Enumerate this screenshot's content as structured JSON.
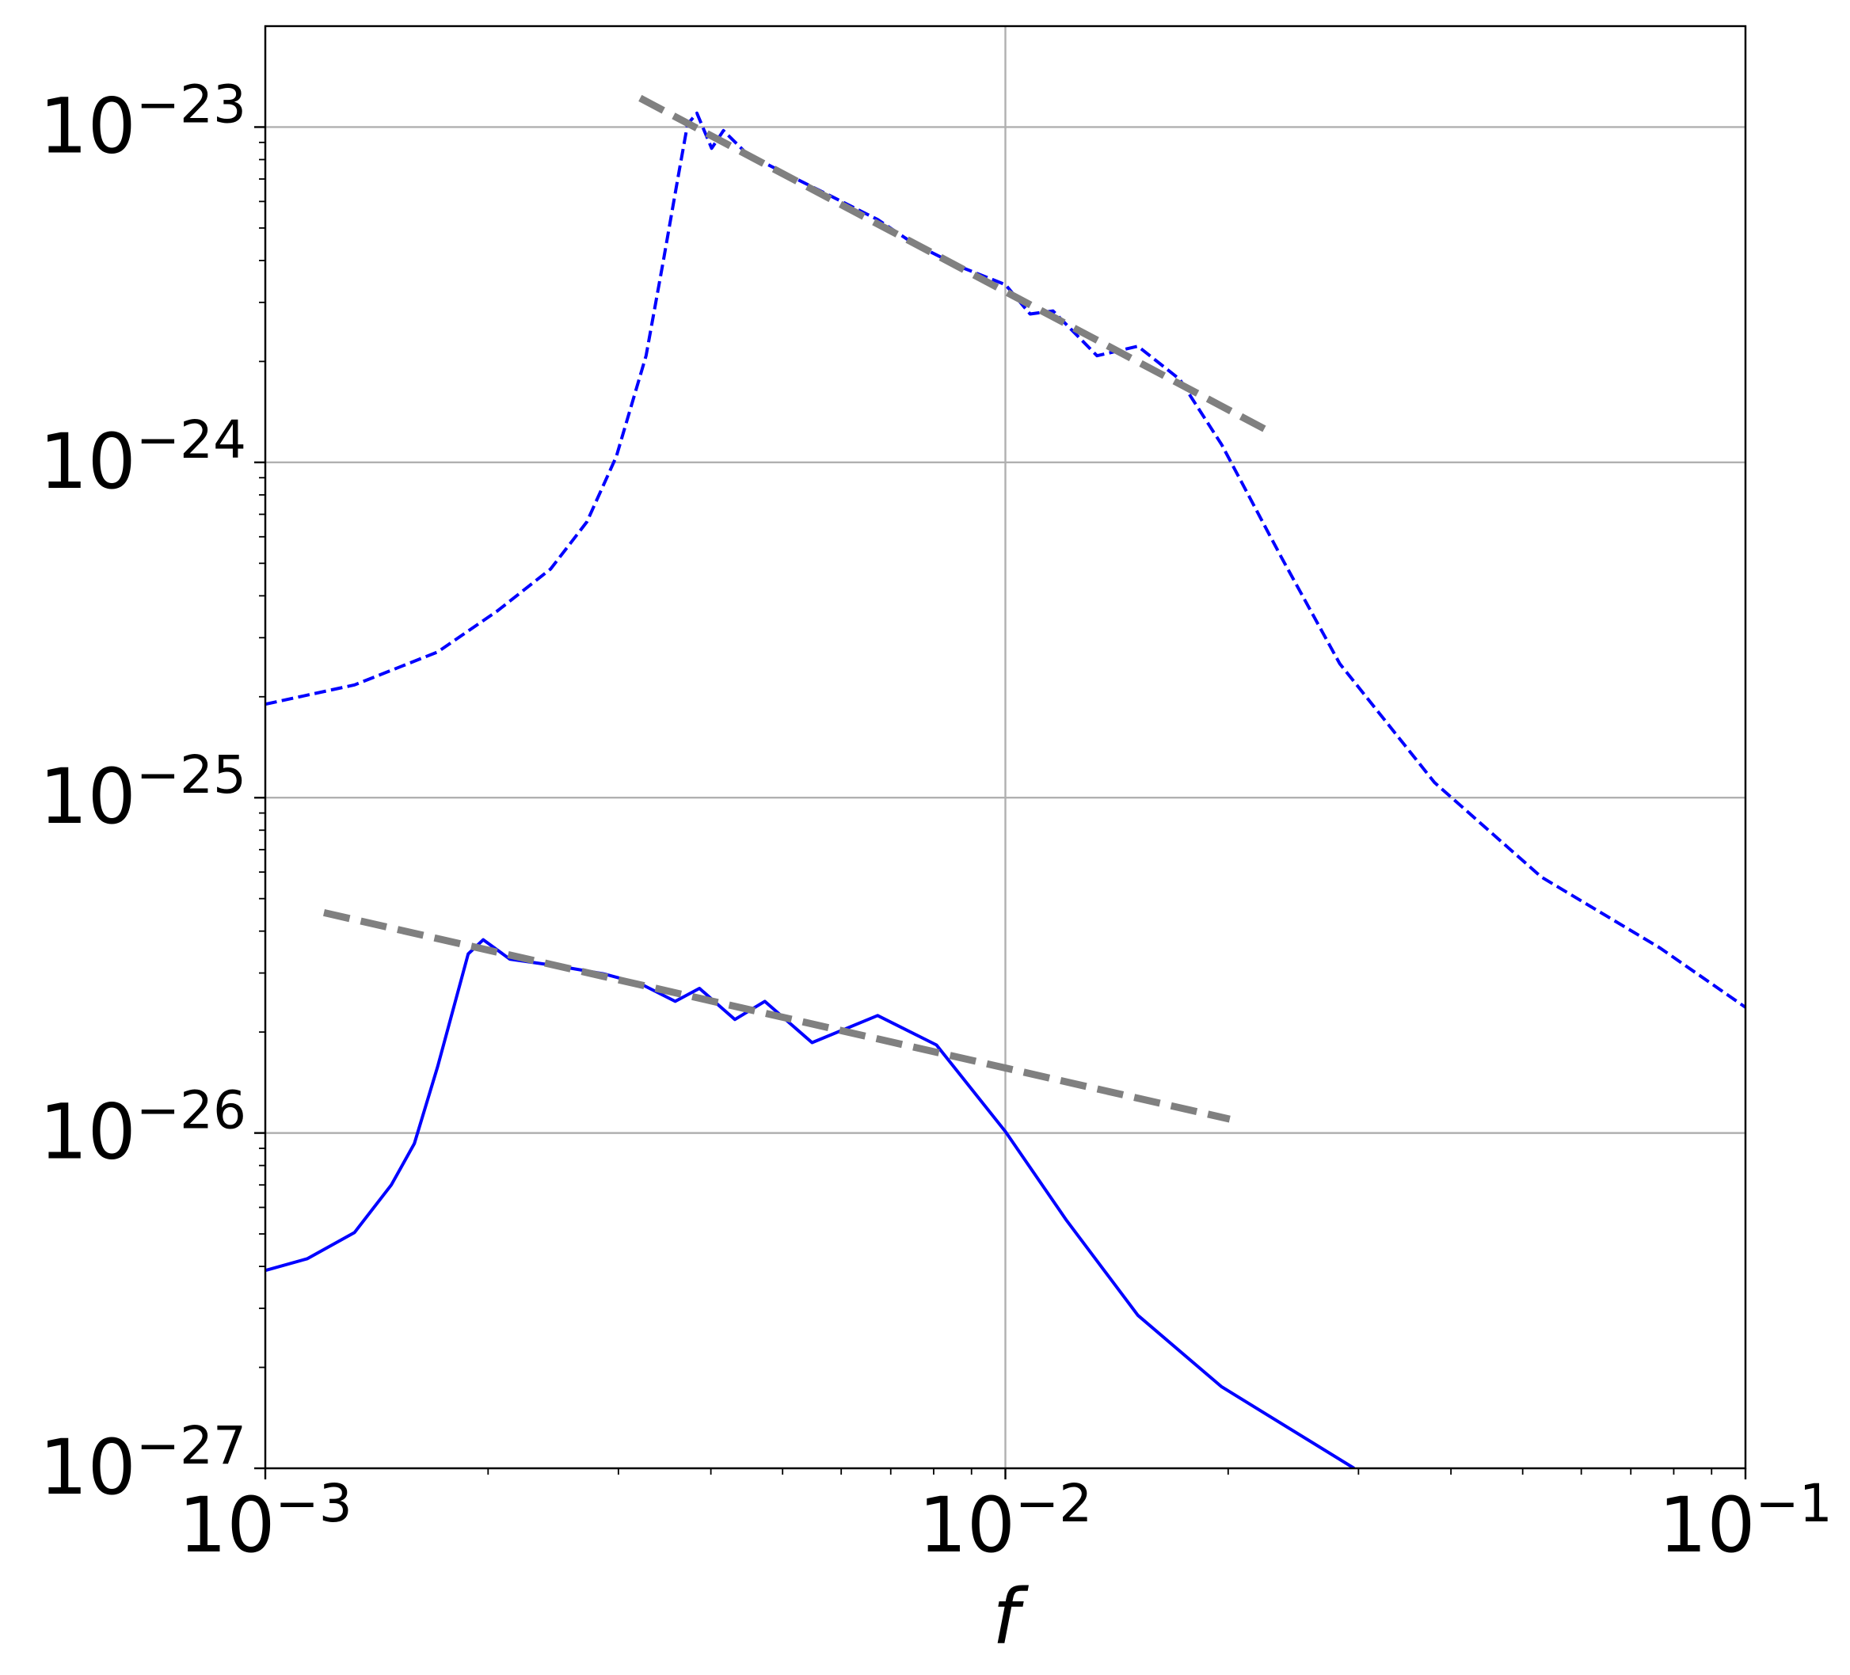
{
  "chart_data": {
    "type": "line",
    "xlabel": "f",
    "xscale": "log",
    "yscale": "log",
    "grid": true,
    "xlim": [
      0.001,
      0.1
    ],
    "ylim": [
      1e-27,
      2e-23
    ],
    "xticks": [
      {
        "value": 0.001,
        "label": "10−3"
      },
      {
        "value": 0.01,
        "label": "10−2"
      },
      {
        "value": 0.1,
        "label": "10−1"
      }
    ],
    "yticks": [
      {
        "value": 1e-27,
        "label": "10−27"
      },
      {
        "value": 1e-26,
        "label": "10−26"
      },
      {
        "value": 1e-25,
        "label": "10−25"
      },
      {
        "value": 1e-24,
        "label": "10−24"
      },
      {
        "value": 1e-23,
        "label": "10−23"
      }
    ],
    "xminorticks": [
      0.002,
      0.003,
      0.004,
      0.005,
      0.006,
      0.007,
      0.008,
      0.009,
      0.02,
      0.03,
      0.04,
      0.05,
      0.06,
      0.07,
      0.08,
      0.09
    ],
    "yminorticks": [
      2e-27,
      3e-27,
      4e-27,
      5e-27,
      6e-27,
      7e-27,
      8e-27,
      9e-27,
      2e-26,
      3e-26,
      4e-26,
      5e-26,
      6e-26,
      7e-26,
      8e-26,
      9e-26,
      2e-25,
      3e-25,
      4e-25,
      5e-25,
      6e-25,
      7e-25,
      8e-25,
      9e-25,
      2e-24,
      3e-24,
      4e-24,
      5e-24,
      6e-24,
      7e-24,
      8e-24,
      9e-24
    ],
    "series": [
      {
        "color": "#0000ff",
        "linestyle": "dashed",
        "linewidth": 4,
        "x": [
          0.001,
          0.00132,
          0.00171,
          0.00206,
          0.00243,
          0.00272,
          0.00298,
          0.00327,
          0.00345,
          0.00361,
          0.00372,
          0.00383,
          0.00401,
          0.00416,
          0.00448,
          0.005,
          0.0058,
          0.00672,
          0.0075,
          0.00869,
          0.01,
          0.0108,
          0.0116,
          0.0133,
          0.0151,
          0.0172,
          0.0196,
          0.0236,
          0.0283,
          0.038,
          0.053,
          0.0767,
          0.1
        ],
        "values": [
          1.9e-25,
          2.17e-25,
          2.72e-25,
          3.61e-25,
          4.81e-25,
          6.65e-25,
          1.04e-24,
          2.08e-24,
          3.99e-24,
          7.05e-24,
          1.02e-23,
          1.1e-23,
          8.64e-24,
          9.76e-24,
          8.3e-24,
          7.34e-24,
          6.24e-24,
          5.3e-24,
          4.51e-24,
          3.83e-24,
          3.39e-24,
          2.77e-24,
          2.83e-24,
          2.08e-24,
          2.22e-24,
          1.77e-24,
          1.13e-24,
          5.21e-25,
          2.51e-25,
          1.11e-25,
          5.8e-26,
          3.56e-26,
          2.37e-26
        ]
      },
      {
        "color": "#0000ff",
        "linestyle": "solid",
        "linewidth": 4,
        "x": [
          0.001,
          0.00114,
          0.00132,
          0.00148,
          0.00159,
          0.00171,
          0.00188,
          0.00197,
          0.00214,
          0.00248,
          0.00287,
          0.00321,
          0.00358,
          0.00386,
          0.00431,
          0.00473,
          0.00548,
          0.00672,
          0.00807,
          0.01,
          0.0121,
          0.0151,
          0.0196,
          0.0296
        ],
        "values": [
          3.89e-27,
          4.22e-27,
          5.05e-27,
          7e-27,
          9.3e-27,
          1.58e-26,
          3.42e-26,
          3.77e-26,
          3.3e-26,
          3.15e-26,
          2.98e-26,
          2.79e-26,
          2.47e-26,
          2.7e-26,
          2.18e-26,
          2.47e-26,
          1.86e-26,
          2.24e-26,
          1.83e-26,
          1.01e-26,
          5.48e-27,
          2.86e-27,
          1.75e-27,
          1e-27
        ]
      },
      {
        "color": "#808080",
        "linestyle": "dashed",
        "linewidth": 9,
        "x": [
          0.00321,
          0.023
        ],
        "values": [
          1.22e-23,
          1.22e-24
        ]
      },
      {
        "color": "#808080",
        "linestyle": "dashed",
        "linewidth": 9,
        "x": [
          0.0012,
          0.0201
        ],
        "values": [
          4.54e-26,
          1.1e-26
        ]
      }
    ]
  }
}
